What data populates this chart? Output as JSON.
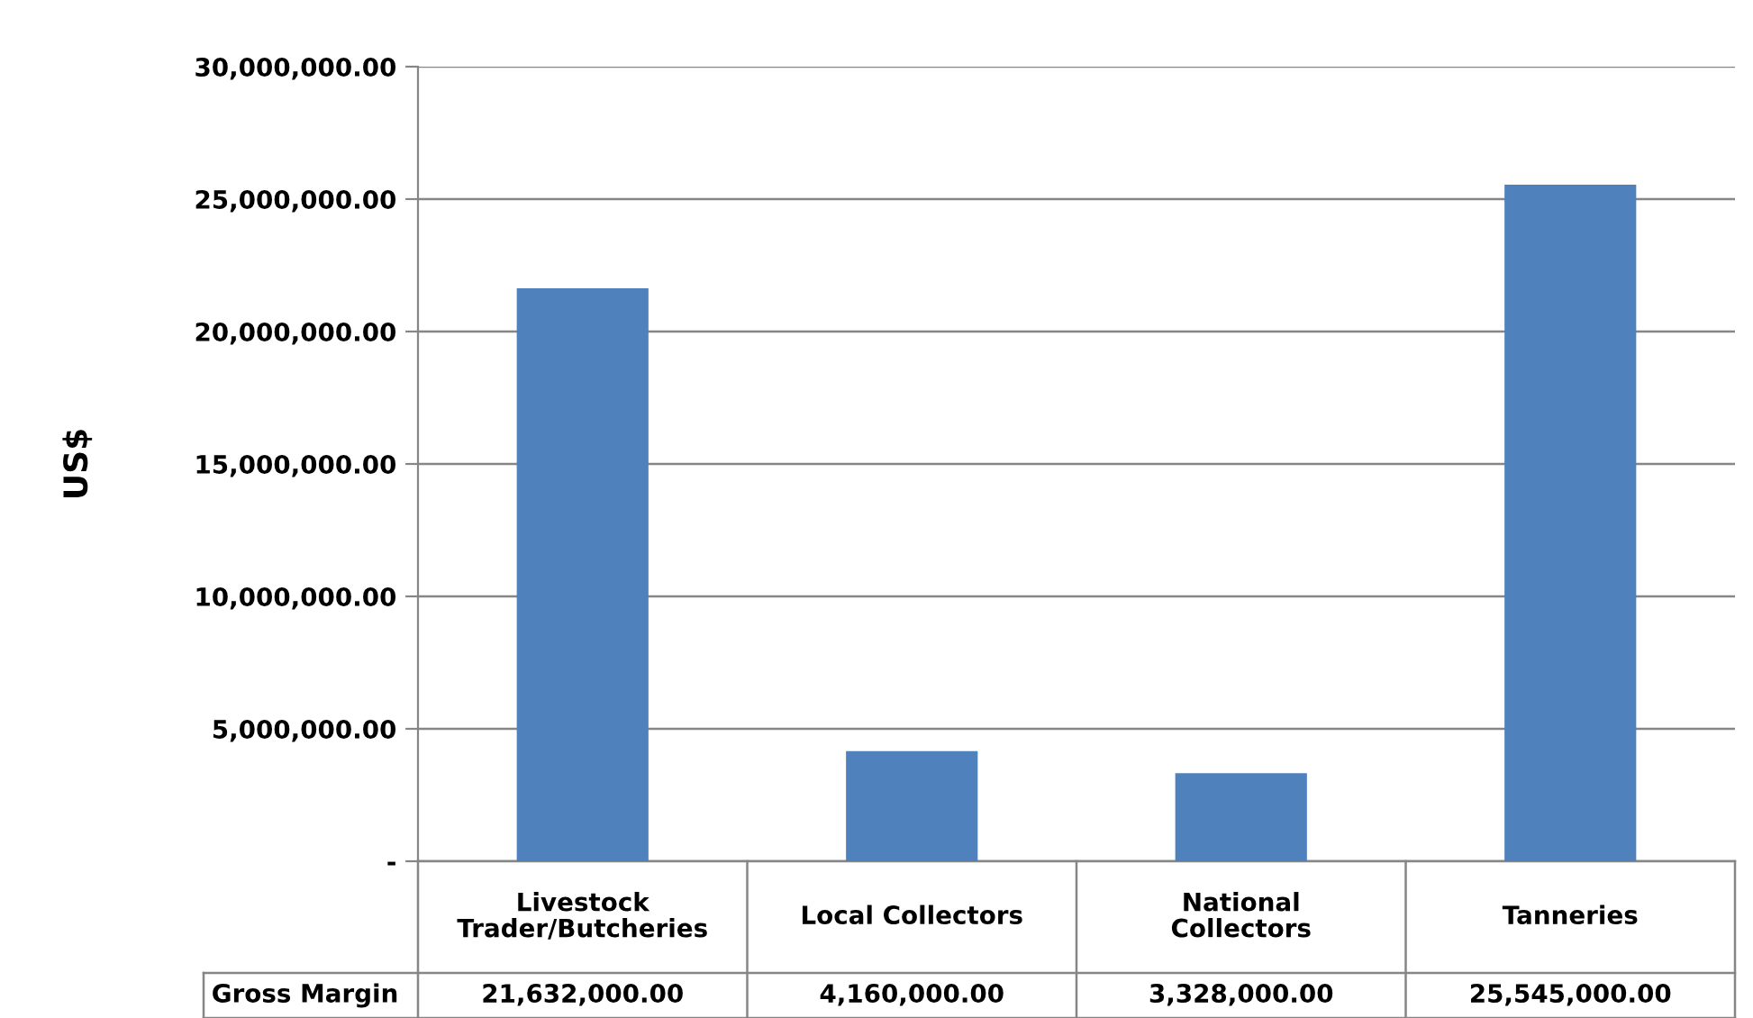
{
  "chart_data": {
    "type": "bar",
    "ylabel": "US$",
    "categories": [
      "Livestock\nTrader/Butcheries",
      "Local Collectors",
      "National\nCollectors",
      "Tanneries"
    ],
    "series": [
      {
        "name": "Gross Margin",
        "color": "#4f81bd",
        "values": [
          21632000,
          4160000,
          3328000,
          25545000
        ],
        "value_labels": [
          "21,632,000.00",
          "4,160,000.00",
          "3,328,000.00",
          "25,545,000.00"
        ]
      }
    ],
    "ylim": [
      0,
      30000000
    ],
    "yticks": [
      {
        "value": 0,
        "label": "-"
      },
      {
        "value": 5000000,
        "label": "5,000,000.00"
      },
      {
        "value": 10000000,
        "label": "10,000,000.00"
      },
      {
        "value": 15000000,
        "label": "15,000,000.00"
      },
      {
        "value": 20000000,
        "label": "20,000,000.00"
      },
      {
        "value": 25000000,
        "label": "25,000,000.00"
      },
      {
        "value": 30000000,
        "label": "30,000,000.00"
      }
    ],
    "grid": "y"
  }
}
